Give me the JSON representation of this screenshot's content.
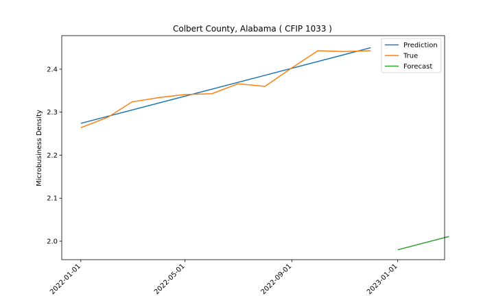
{
  "chart_data": {
    "type": "line",
    "title": "Colbert County, Alabama ( CFIP 1033 )",
    "xlabel": "",
    "ylabel": "Microbusiness Density",
    "x_axis_type": "date",
    "xlim": [
      "2021-12-10",
      "2023-02-24"
    ],
    "ylim": [
      1.957,
      2.478
    ],
    "x_ticks": [
      "2022-01-01",
      "2022-05-01",
      "2022-09-01",
      "2023-01-01"
    ],
    "y_ticks": [
      2.0,
      2.1,
      2.2,
      2.3,
      2.4
    ],
    "y_tick_labels": [
      "2.0",
      "2.1",
      "2.2",
      "2.3",
      "2.4"
    ],
    "grid": false,
    "legend_position": "top-right",
    "series": [
      {
        "name": "Prediction",
        "color": "#1f77b4",
        "x": [
          "2022-01-01",
          "2022-12-01"
        ],
        "y": [
          2.274,
          2.45
        ]
      },
      {
        "name": "True",
        "color": "#ff7f0e",
        "x": [
          "2022-01-01",
          "2022-02-01",
          "2022-03-01",
          "2022-04-01",
          "2022-05-01",
          "2022-06-01",
          "2022-07-01",
          "2022-08-01",
          "2022-09-01",
          "2022-10-01",
          "2022-11-01",
          "2022-12-01"
        ],
        "y": [
          2.264,
          2.288,
          2.324,
          2.334,
          2.341,
          2.343,
          2.366,
          2.36,
          2.403,
          2.443,
          2.441,
          2.443
        ]
      },
      {
        "name": "Forecast",
        "color": "#2ca02c",
        "x": [
          "2023-01-01",
          "2023-03-01"
        ],
        "y": [
          1.98,
          2.011
        ]
      }
    ]
  }
}
